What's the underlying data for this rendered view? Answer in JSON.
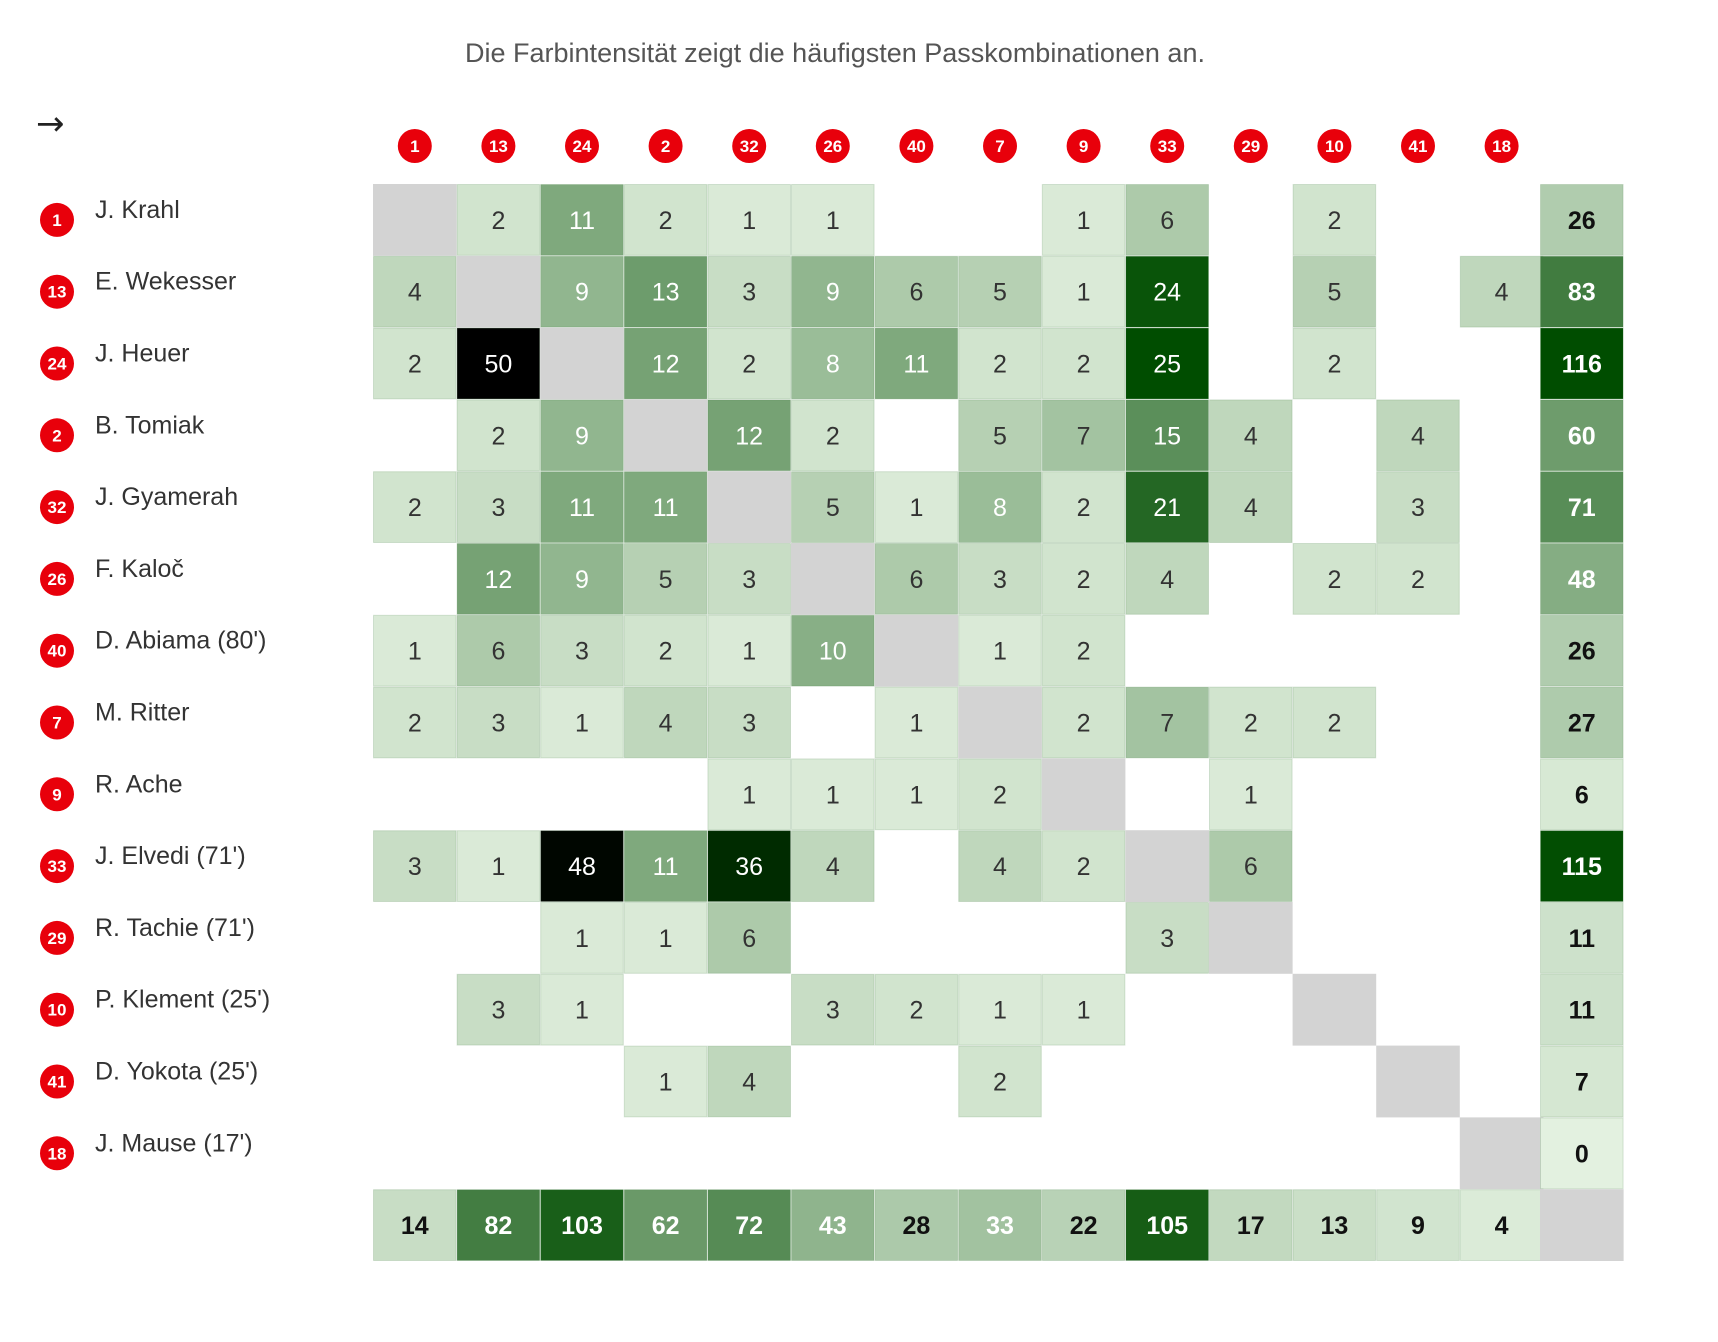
{
  "subtitle": "Die Farbintensität zeigt die häufigsten Passkombinationen an.",
  "arrow_symbol": "→",
  "colors": {
    "badge": "#e8000b",
    "diagonal": "#d3d3d3",
    "scale_low": "#e3f1e0",
    "scale_high": "#004d00",
    "scale_max": "#000000"
  },
  "chart_data": {
    "type": "heatmap",
    "title": "",
    "column_numbers": [
      "1",
      "13",
      "24",
      "2",
      "32",
      "26",
      "40",
      "7",
      "9",
      "33",
      "29",
      "10",
      "41",
      "18"
    ],
    "players": [
      {
        "number": "1",
        "name": "J. Krahl"
      },
      {
        "number": "13",
        "name": "E. Wekesser"
      },
      {
        "number": "24",
        "name": "J. Heuer"
      },
      {
        "number": "2",
        "name": "B. Tomiak"
      },
      {
        "number": "32",
        "name": "J. Gyamerah"
      },
      {
        "number": "26",
        "name": "F. Kaloč"
      },
      {
        "number": "40",
        "name": "D. Abiama (80')"
      },
      {
        "number": "7",
        "name": "M. Ritter"
      },
      {
        "number": "9",
        "name": "R. Ache"
      },
      {
        "number": "33",
        "name": "J. Elvedi (71')"
      },
      {
        "number": "29",
        "name": "R. Tachie (71')"
      },
      {
        "number": "10",
        "name": "P. Klement (25')"
      },
      {
        "number": "41",
        "name": "D. Yokota (25')"
      },
      {
        "number": "18",
        "name": "J. Mause (17')"
      }
    ],
    "matrix": [
      [
        null,
        2,
        11,
        2,
        1,
        1,
        null,
        null,
        1,
        6,
        null,
        2,
        null,
        null
      ],
      [
        4,
        null,
        9,
        13,
        3,
        9,
        6,
        5,
        1,
        24,
        null,
        5,
        null,
        4
      ],
      [
        2,
        50,
        null,
        12,
        2,
        8,
        11,
        2,
        2,
        25,
        null,
        2,
        null,
        null
      ],
      [
        null,
        2,
        9,
        null,
        12,
        2,
        null,
        5,
        7,
        15,
        4,
        null,
        4,
        null
      ],
      [
        2,
        3,
        11,
        11,
        null,
        5,
        1,
        8,
        2,
        21,
        4,
        null,
        3,
        null
      ],
      [
        null,
        12,
        9,
        5,
        3,
        null,
        6,
        3,
        2,
        4,
        null,
        2,
        2,
        null
      ],
      [
        1,
        6,
        3,
        2,
        1,
        10,
        null,
        1,
        2,
        null,
        null,
        null,
        null,
        null
      ],
      [
        2,
        3,
        1,
        4,
        3,
        null,
        1,
        null,
        2,
        7,
        2,
        2,
        null,
        null
      ],
      [
        null,
        null,
        null,
        null,
        1,
        1,
        1,
        2,
        null,
        null,
        1,
        null,
        null,
        null
      ],
      [
        3,
        1,
        48,
        11,
        36,
        4,
        null,
        4,
        2,
        null,
        6,
        null,
        null,
        null
      ],
      [
        null,
        null,
        1,
        1,
        6,
        null,
        null,
        null,
        null,
        3,
        null,
        null,
        null,
        null
      ],
      [
        null,
        3,
        1,
        null,
        null,
        3,
        2,
        1,
        1,
        null,
        null,
        null,
        null,
        null
      ],
      [
        null,
        null,
        null,
        1,
        4,
        null,
        null,
        2,
        null,
        null,
        null,
        null,
        null,
        null
      ],
      [
        null,
        null,
        null,
        null,
        null,
        null,
        null,
        null,
        null,
        null,
        null,
        null,
        null,
        null
      ]
    ],
    "row_totals": [
      26,
      83,
      116,
      60,
      71,
      48,
      26,
      27,
      6,
      115,
      11,
      11,
      7,
      0
    ],
    "column_totals": [
      14,
      82,
      103,
      62,
      72,
      43,
      28,
      33,
      22,
      105,
      17,
      13,
      9,
      4
    ]
  }
}
